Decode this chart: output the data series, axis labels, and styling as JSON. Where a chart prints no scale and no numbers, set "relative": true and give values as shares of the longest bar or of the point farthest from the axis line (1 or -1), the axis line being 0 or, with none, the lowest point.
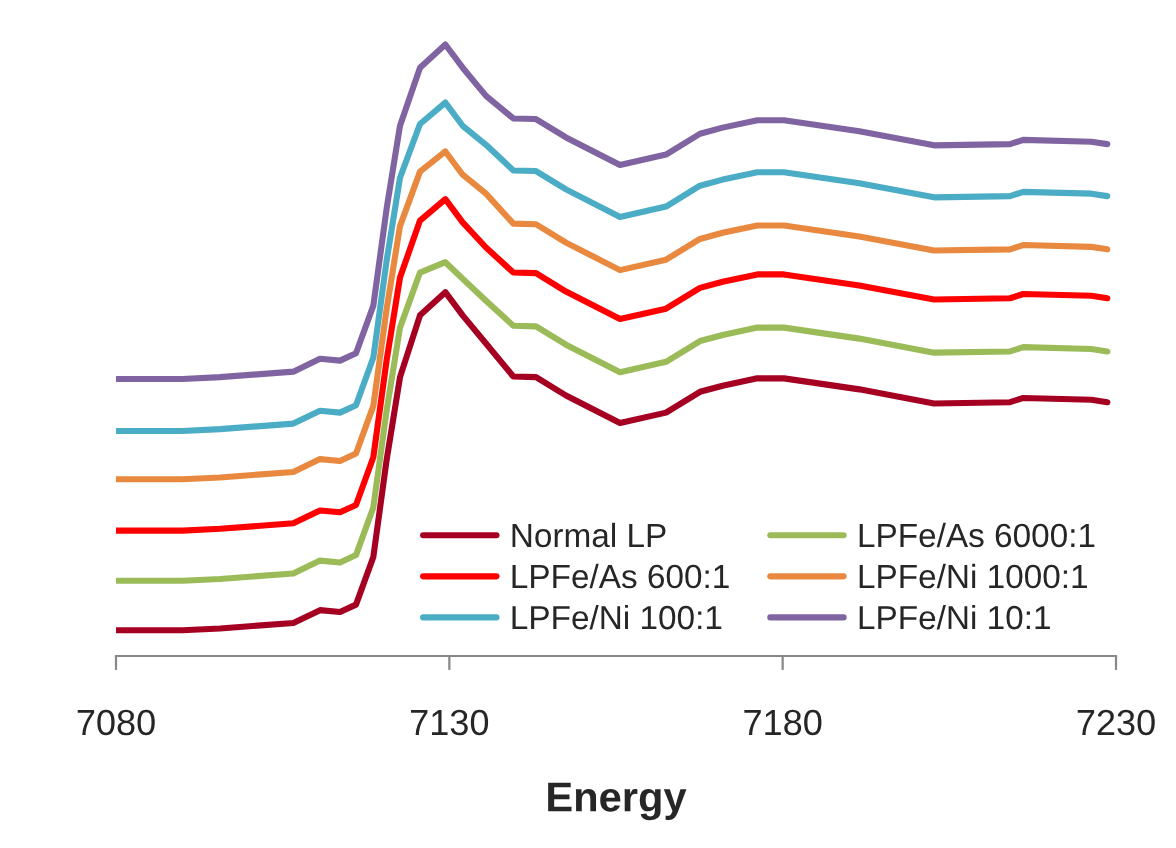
{
  "chart_data": {
    "type": "line",
    "xlabel": "Energy",
    "relative": true,
    "legend": "bottom right",
    "xlim": [
      7080,
      7230
    ],
    "xticks": [
      7080,
      7130,
      7180,
      7230
    ],
    "x": [
      7080,
      7090,
      7095.6,
      7106.6,
      7110.6,
      7113.6,
      7116,
      7118.6,
      7120.6,
      7122.6,
      7125.6,
      7129.4,
      7132,
      7135.5,
      7139.6,
      7143,
      7147.5,
      7155.6,
      7162.5,
      7167.6,
      7171,
      7176.2,
      7180.2,
      7191.5,
      7202.7,
      7214.1,
      7216.1,
      7226.3,
      7228.7
    ],
    "series": [
      {
        "name": "Normal LP",
        "color": "#a50021",
        "values": [
          0.042,
          0.042,
          0.045,
          0.054,
          0.075,
          0.072,
          0.084,
          0.162,
          0.321,
          0.456,
          0.557,
          0.595,
          0.557,
          0.511,
          0.457,
          0.456,
          0.426,
          0.381,
          0.398,
          0.432,
          0.442,
          0.454,
          0.454,
          0.436,
          0.413,
          0.415,
          0.422,
          0.419,
          0.415
        ]
      },
      {
        "name": "LPFe/As 6000:1",
        "color": "#9bbb59",
        "values": [
          0.123,
          0.123,
          0.126,
          0.135,
          0.156,
          0.153,
          0.165,
          0.243,
          0.402,
          0.537,
          0.627,
          0.644,
          0.617,
          0.581,
          0.54,
          0.539,
          0.509,
          0.464,
          0.481,
          0.515,
          0.525,
          0.537,
          0.537,
          0.519,
          0.496,
          0.498,
          0.505,
          0.502,
          0.498
        ]
      },
      {
        "name": "LPFe/As 600:1",
        "color": "#ff0000",
        "values": [
          0.205,
          0.205,
          0.208,
          0.217,
          0.238,
          0.235,
          0.247,
          0.325,
          0.484,
          0.619,
          0.712,
          0.747,
          0.709,
          0.668,
          0.627,
          0.626,
          0.596,
          0.551,
          0.568,
          0.602,
          0.612,
          0.624,
          0.624,
          0.606,
          0.583,
          0.585,
          0.592,
          0.589,
          0.585
        ]
      },
      {
        "name": "LPFe/Ni 1000:1",
        "color": "#e8893f",
        "values": [
          0.289,
          0.289,
          0.292,
          0.301,
          0.322,
          0.319,
          0.331,
          0.409,
          0.568,
          0.703,
          0.792,
          0.825,
          0.787,
          0.756,
          0.707,
          0.706,
          0.676,
          0.631,
          0.648,
          0.682,
          0.692,
          0.704,
          0.704,
          0.686,
          0.663,
          0.665,
          0.672,
          0.669,
          0.665
        ]
      },
      {
        "name": "LPFe/Ni 100:1",
        "color": "#4bacc6",
        "values": [
          0.368,
          0.368,
          0.371,
          0.38,
          0.401,
          0.398,
          0.41,
          0.488,
          0.647,
          0.782,
          0.87,
          0.905,
          0.867,
          0.836,
          0.794,
          0.793,
          0.763,
          0.718,
          0.735,
          0.769,
          0.779,
          0.791,
          0.791,
          0.773,
          0.75,
          0.752,
          0.759,
          0.756,
          0.752
        ]
      },
      {
        "name": "LPFe/Ni 10:1",
        "color": "#8064a2",
        "values": [
          0.453,
          0.453,
          0.456,
          0.465,
          0.486,
          0.483,
          0.495,
          0.573,
          0.732,
          0.867,
          0.962,
          1.0,
          0.962,
          0.916,
          0.879,
          0.878,
          0.848,
          0.803,
          0.82,
          0.854,
          0.864,
          0.876,
          0.876,
          0.858,
          0.835,
          0.837,
          0.844,
          0.841,
          0.837
        ]
      }
    ]
  }
}
